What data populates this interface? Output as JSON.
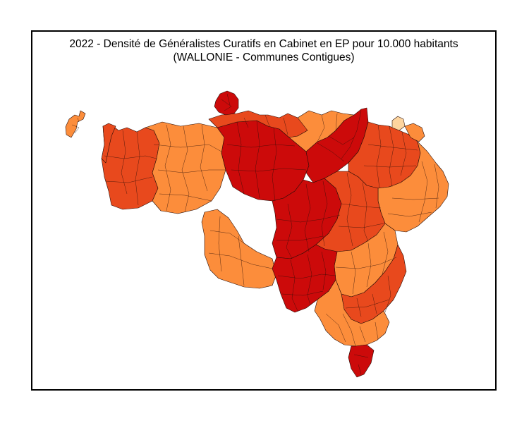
{
  "map": {
    "title_line1": "2022 - Densité de Généralistes Curatifs en Cabinet en EP pour 10.000 habitants",
    "title_line2": "(WALLONIE - Communes Contigues)",
    "colors": {
      "very_low": "#fdd49e",
      "low": "#fc8d3b",
      "medium": "#e8491d",
      "high": "#cc0a0a",
      "border": "#2a0e08"
    }
  }
}
